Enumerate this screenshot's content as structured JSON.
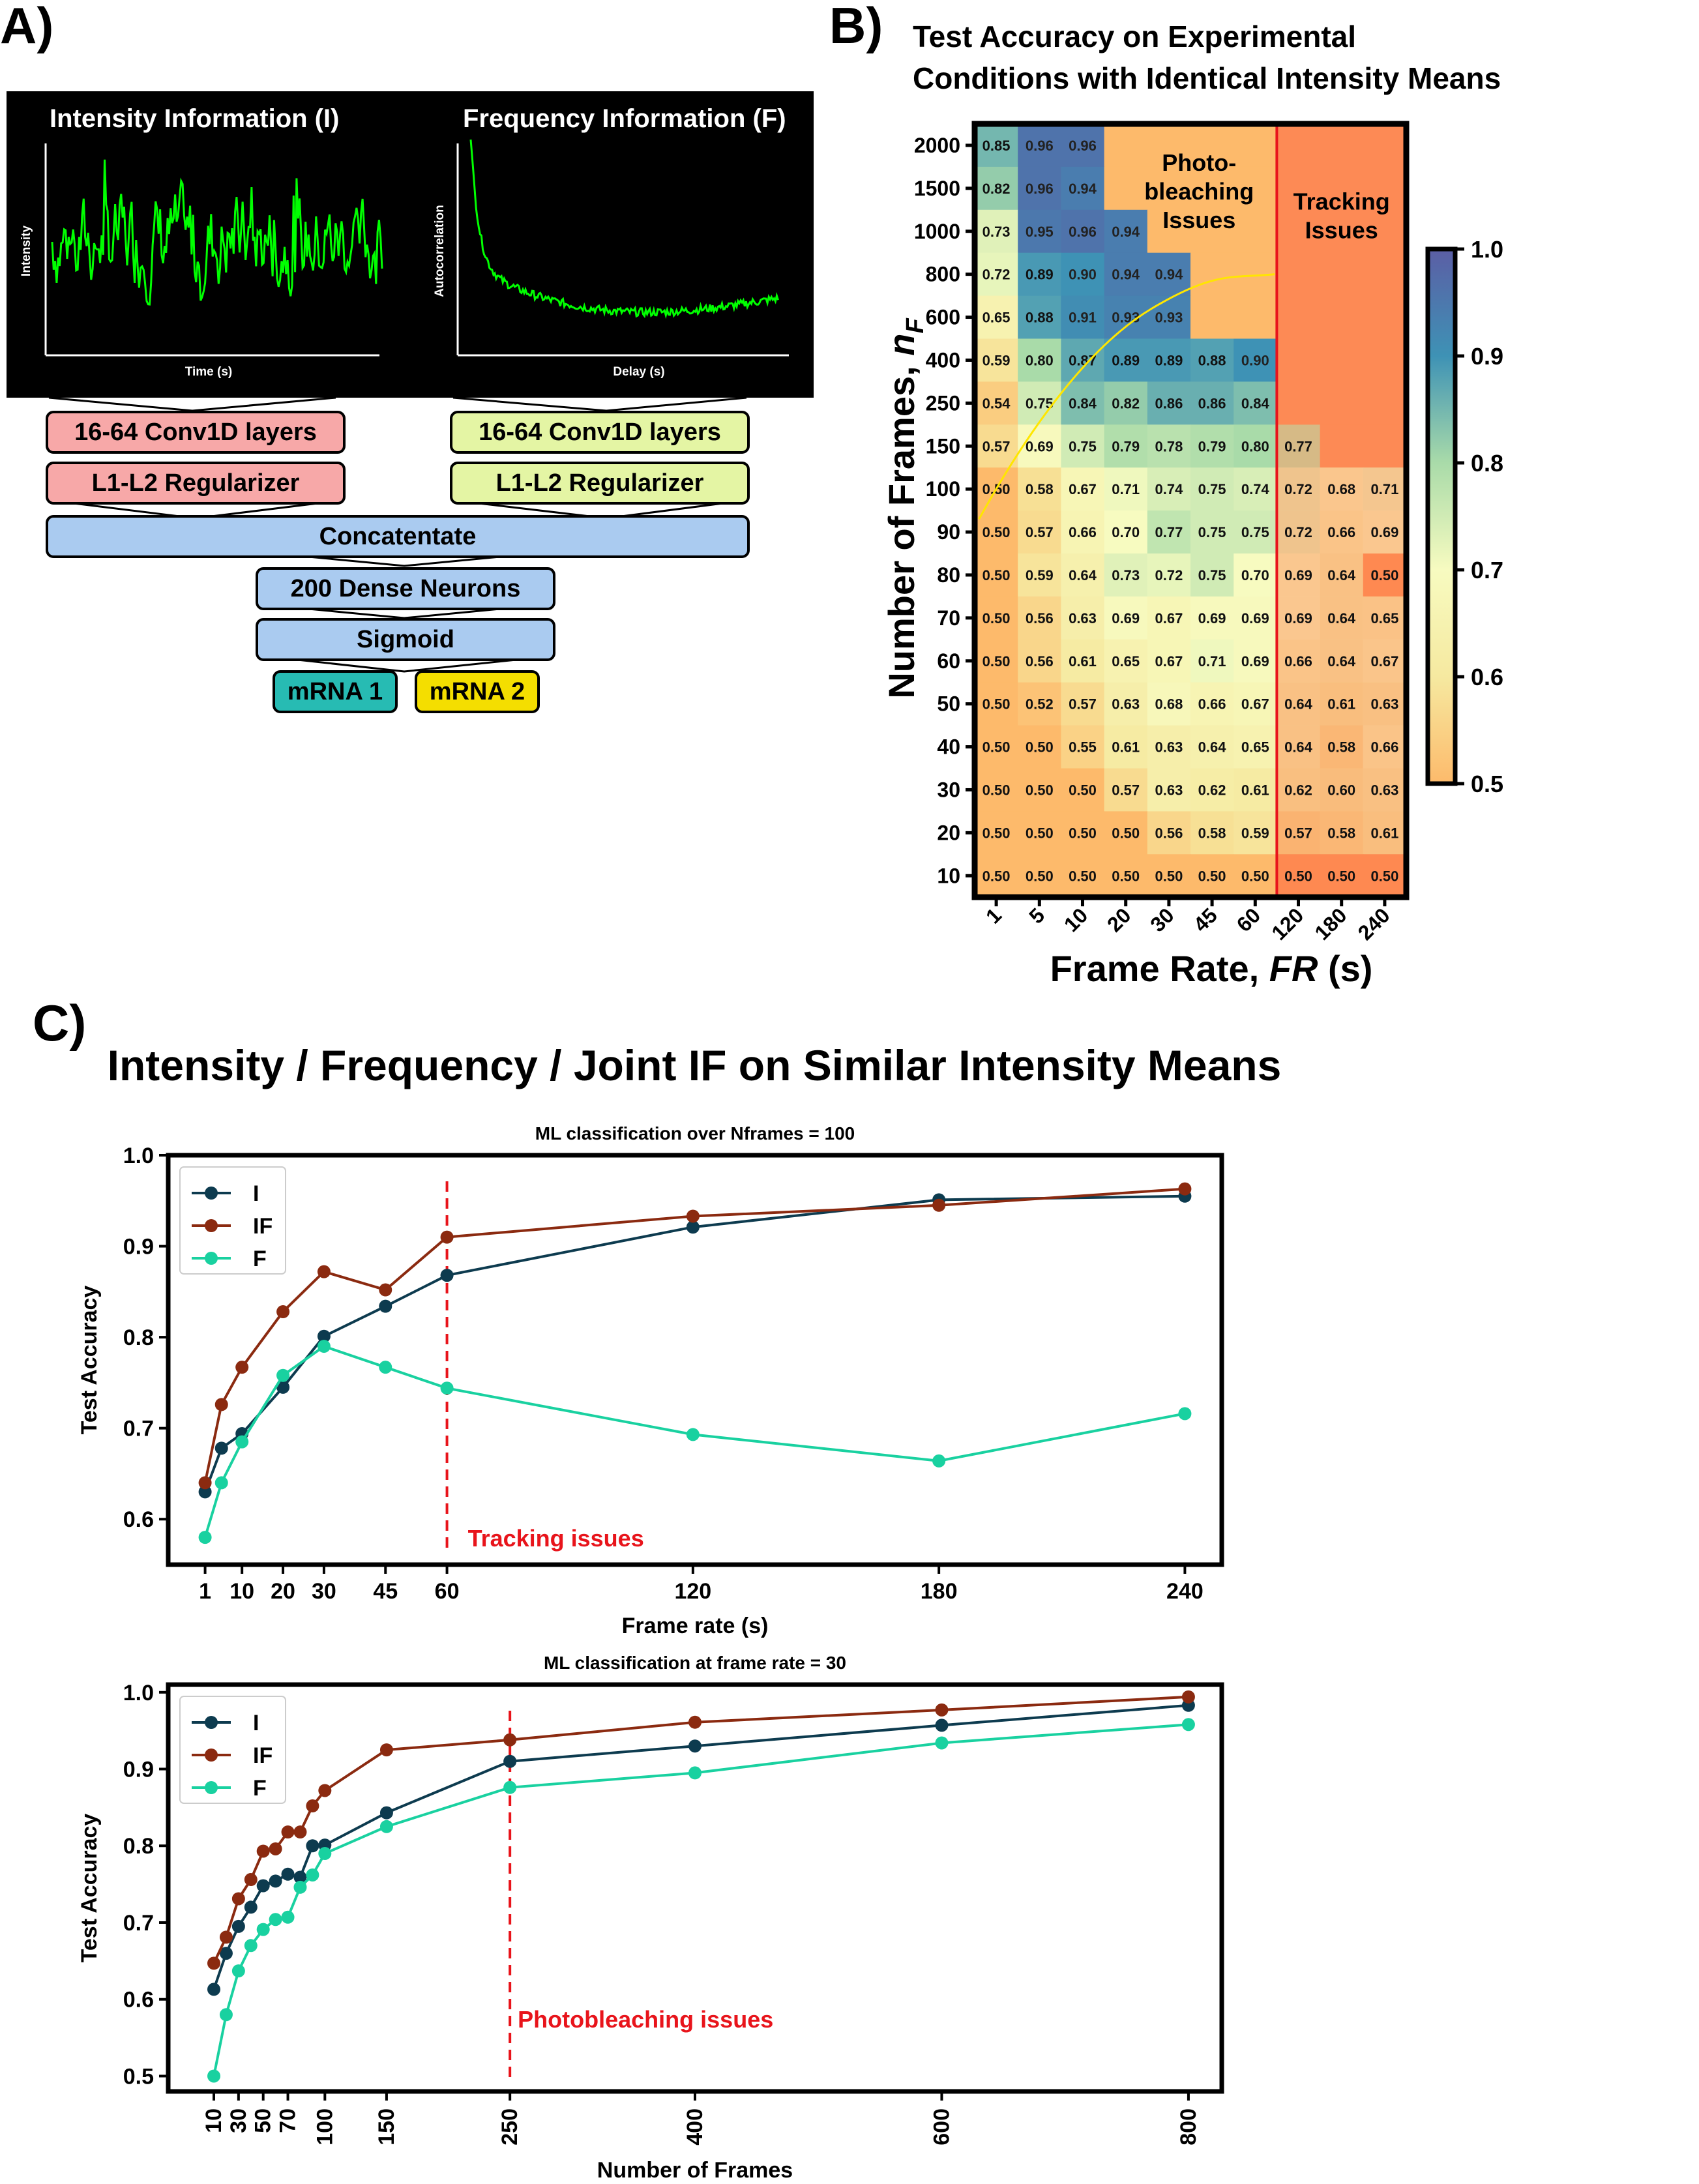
{
  "panel_labels": {
    "a": "A)",
    "b": "B)",
    "c": "C)"
  },
  "panel_a": {
    "intensity_title": "Intensity Information (I)",
    "frequency_title": "Frequency Information (F)",
    "intensity_ylabel": "Intensity",
    "intensity_xlabel": "Time (s)",
    "autocorr_ylabel": "Autocorrelation",
    "autocorr_xlabel": "Delay (s)",
    "conv_left": "16-64 Conv1D layers",
    "conv_right": "16-64 Conv1D layers",
    "reg_left": "L1-L2 Regularizer",
    "reg_right": "L1-L2 Regularizer",
    "concat": "Concatentate",
    "dense": "200 Dense Neurons",
    "sigmoid": "Sigmoid",
    "out1": "mRNA 1",
    "out2": "mRNA 2",
    "colors": {
      "signal": "#00ff00",
      "conv_left": "#f7a8a8",
      "conv_right": "#e4f5a4",
      "shared": "#aacbf0",
      "out1": "#27bbb3",
      "out2": "#f4de00"
    }
  },
  "chart_data": [
    {
      "type": "heatmap",
      "title_line1": "Test Accuracy on Experimental",
      "title_line2": "Conditions with Identical Intensity Means",
      "xlabel_prefix": "Frame Rate, ",
      "xlabel_var": "FR",
      "xlabel_suffix": " (s)",
      "ylabel_prefix": "Number of Frames, ",
      "ylabel_var": "n",
      "ylabel_sub": "F",
      "x_categories": [
        "1",
        "5",
        "10",
        "20",
        "30",
        "45",
        "60",
        "120",
        "180",
        "240"
      ],
      "y_categories": [
        "2000",
        "1500",
        "1000",
        "800",
        "600",
        "400",
        "250",
        "150",
        "100",
        "90",
        "80",
        "70",
        "60",
        "50",
        "40",
        "30",
        "20",
        "10"
      ],
      "values": [
        [
          0.85,
          0.96,
          0.96,
          null,
          null,
          null,
          null,
          null,
          null,
          null
        ],
        [
          0.82,
          0.96,
          0.94,
          null,
          null,
          null,
          null,
          null,
          null,
          null
        ],
        [
          0.73,
          0.95,
          0.96,
          0.94,
          null,
          null,
          null,
          null,
          null,
          null
        ],
        [
          0.72,
          0.89,
          0.9,
          0.94,
          0.94,
          null,
          null,
          null,
          null,
          null
        ],
        [
          0.65,
          0.88,
          0.91,
          0.93,
          0.93,
          null,
          null,
          null,
          null,
          null
        ],
        [
          0.59,
          0.8,
          0.87,
          0.89,
          0.89,
          0.88,
          0.9,
          null,
          null,
          null
        ],
        [
          0.54,
          0.75,
          0.84,
          0.82,
          0.86,
          0.86,
          0.84,
          null,
          null,
          null
        ],
        [
          0.57,
          0.69,
          0.75,
          0.79,
          0.78,
          0.79,
          0.8,
          0.77,
          null,
          null
        ],
        [
          0.5,
          0.58,
          0.67,
          0.71,
          0.74,
          0.75,
          0.74,
          0.72,
          0.68,
          0.71
        ],
        [
          0.5,
          0.57,
          0.66,
          0.7,
          0.77,
          0.75,
          0.75,
          0.72,
          0.66,
          0.69
        ],
        [
          0.5,
          0.59,
          0.64,
          0.73,
          0.72,
          0.75,
          0.7,
          0.69,
          0.64,
          0.5
        ],
        [
          0.5,
          0.56,
          0.63,
          0.69,
          0.67,
          0.69,
          0.69,
          0.69,
          0.64,
          0.65
        ],
        [
          0.5,
          0.56,
          0.61,
          0.65,
          0.67,
          0.71,
          0.69,
          0.66,
          0.64,
          0.67
        ],
        [
          0.5,
          0.52,
          0.57,
          0.63,
          0.68,
          0.66,
          0.67,
          0.64,
          0.61,
          0.63
        ],
        [
          0.5,
          0.5,
          0.55,
          0.61,
          0.63,
          0.64,
          0.65,
          0.64,
          0.58,
          0.66
        ],
        [
          0.5,
          0.5,
          0.5,
          0.57,
          0.63,
          0.62,
          0.61,
          0.62,
          0.6,
          0.63
        ],
        [
          0.5,
          0.5,
          0.5,
          0.5,
          0.56,
          0.58,
          0.59,
          0.57,
          0.58,
          0.61
        ],
        [
          0.5,
          0.5,
          0.5,
          0.5,
          0.5,
          0.5,
          0.5,
          0.5,
          0.5,
          0.5
        ]
      ],
      "colorbar": {
        "min": 0.5,
        "max": 1.0,
        "ticks": [
          "0.5",
          "0.6",
          "0.7",
          "0.8",
          "0.9",
          "1.0"
        ]
      },
      "annotations": {
        "photobleaching": [
          "Photo-",
          "bleaching",
          "Issues"
        ],
        "tracking": [
          "Tracking",
          "Issues"
        ]
      },
      "region_colors": {
        "photobleaching": "#fdba6b",
        "tracking": "#fd8a55",
        "tracking_border": "#e8141b",
        "boundary": "#ffe600"
      }
    },
    {
      "type": "line",
      "suptitle": "Intensity / Frequency / Joint IF on Similar Intensity Means",
      "title": "ML classification over Nframes = 100",
      "xlabel": "Frame rate (s)",
      "ylabel": "Test Accuracy",
      "xlim": [
        -8,
        249
      ],
      "ylim": [
        0.55,
        1.0
      ],
      "x_ticks": [
        "1",
        "10",
        "20",
        "30",
        "45",
        "60",
        "120",
        "180",
        "240"
      ],
      "y_ticks": [
        "0.6",
        "0.7",
        "0.8",
        "0.9",
        "1.0"
      ],
      "legend_position": "top-left",
      "x": [
        1,
        5,
        10,
        20,
        30,
        45,
        60,
        120,
        180,
        240
      ],
      "series": [
        {
          "name": "I",
          "color": "#0d3b4f",
          "values": [
            0.63,
            0.678,
            0.694,
            0.745,
            0.801,
            0.834,
            0.868,
            0.921,
            0.951,
            0.955
          ]
        },
        {
          "name": "IF",
          "color": "#8b2a10",
          "values": [
            0.64,
            0.726,
            0.767,
            0.828,
            0.872,
            0.852,
            0.91,
            0.933,
            0.945,
            0.963
          ]
        },
        {
          "name": "F",
          "color": "#19d1a0",
          "values": [
            0.58,
            0.64,
            0.685,
            0.758,
            0.79,
            0.767,
            0.744,
            0.693,
            0.664,
            0.716
          ]
        }
      ],
      "vline": {
        "x": 60,
        "label": "Tracking issues",
        "color": "#e8141b"
      }
    },
    {
      "type": "line",
      "title": "ML classification at frame rate = 30",
      "xlabel": "Number of Frames",
      "ylabel": "Test Accuracy",
      "xlim": [
        -27,
        827
      ],
      "ylim": [
        0.48,
        1.01
      ],
      "x_ticks": [
        "10",
        "30",
        "50",
        "70",
        "100",
        "150",
        "250",
        "400",
        "600",
        "800"
      ],
      "y_ticks": [
        "0.5",
        "0.6",
        "0.7",
        "0.8",
        "0.9",
        "1.0"
      ],
      "legend_position": "top-left",
      "x": [
        10,
        20,
        30,
        40,
        50,
        60,
        70,
        80,
        90,
        100,
        150,
        250,
        400,
        600,
        800
      ],
      "series": [
        {
          "name": "I",
          "color": "#0d3b4f",
          "values": [
            0.613,
            0.66,
            0.695,
            0.72,
            0.748,
            0.754,
            0.763,
            0.759,
            0.8,
            0.801,
            0.843,
            0.91,
            0.93,
            0.957,
            0.983
          ]
        },
        {
          "name": "IF",
          "color": "#8b2a10",
          "values": [
            0.647,
            0.681,
            0.731,
            0.756,
            0.793,
            0.796,
            0.818,
            0.818,
            0.852,
            0.872,
            0.925,
            0.938,
            0.961,
            0.977,
            0.994
          ]
        },
        {
          "name": "F",
          "color": "#19d1a0",
          "values": [
            0.5,
            0.58,
            0.637,
            0.67,
            0.691,
            0.704,
            0.707,
            0.746,
            0.762,
            0.79,
            0.825,
            0.876,
            0.895,
            0.934,
            0.958
          ]
        }
      ],
      "vline": {
        "x": 250,
        "label": "Photobleaching issues",
        "color": "#e8141b"
      }
    }
  ]
}
